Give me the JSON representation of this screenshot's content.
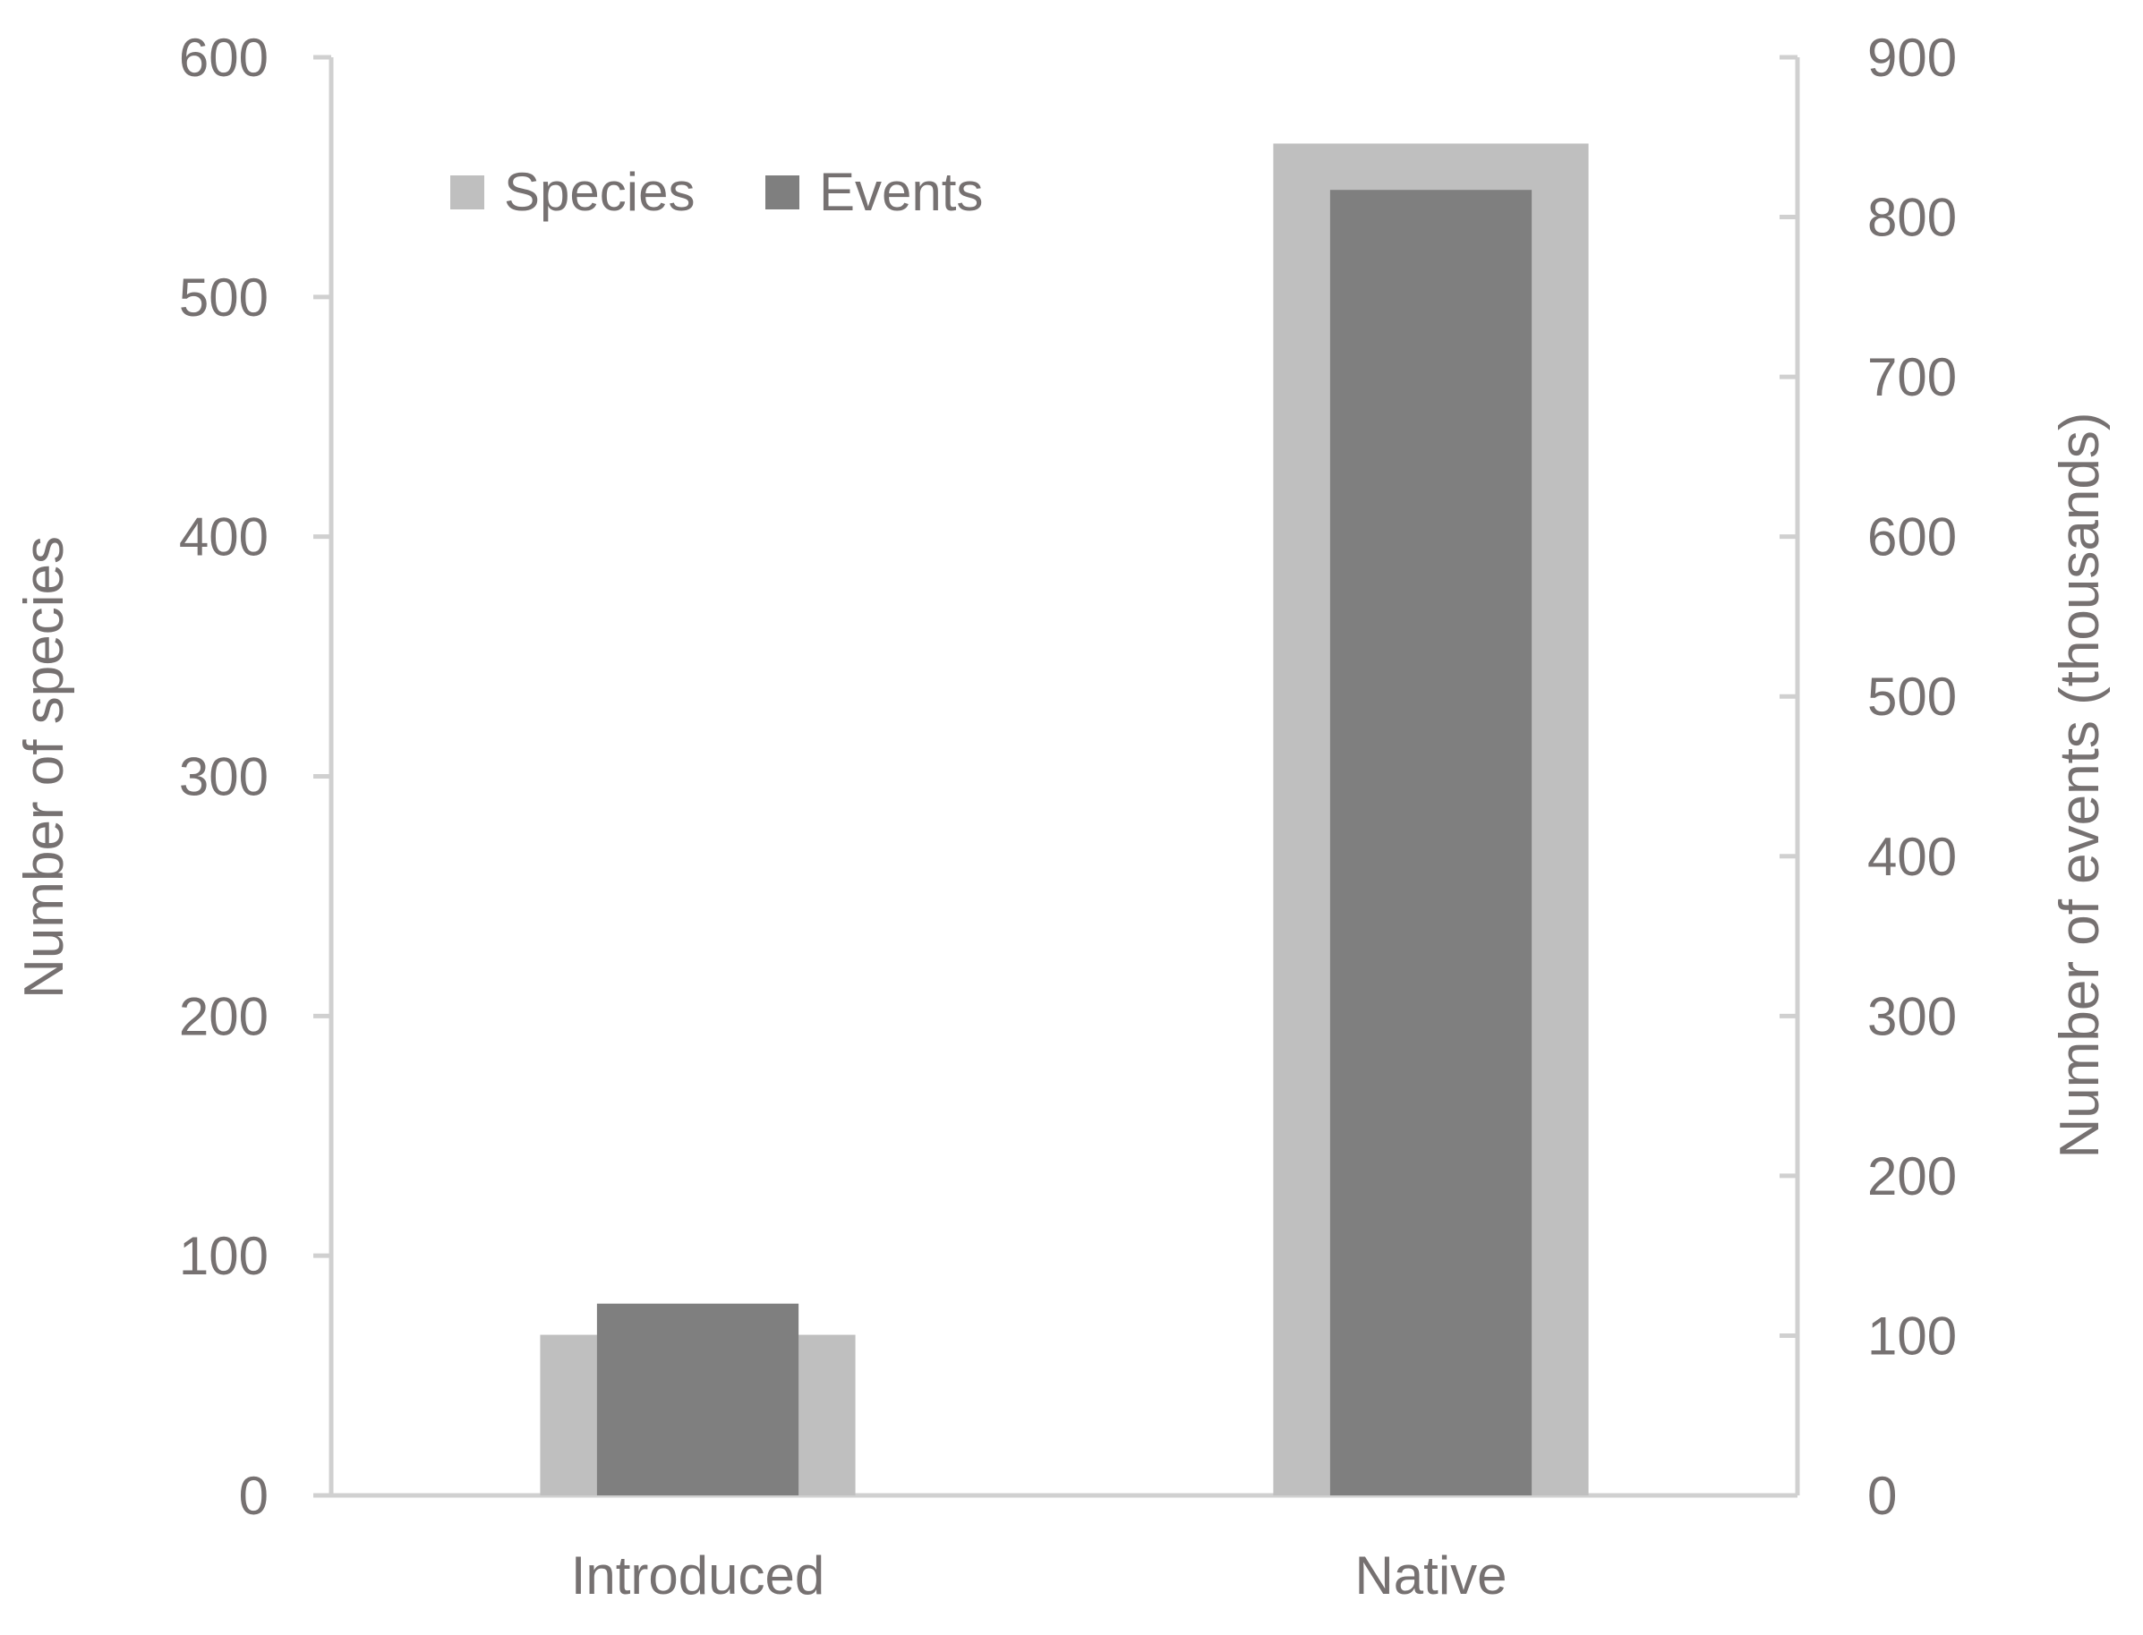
{
  "chart_data": {
    "type": "bar",
    "categories": [
      "Introduced",
      "Native"
    ],
    "series": [
      {
        "name": "Species",
        "axis": "left",
        "values": [
          67,
          564
        ],
        "color": "#bfbfbf"
      },
      {
        "name": "Events",
        "axis": "right",
        "values": [
          120,
          817
        ],
        "color": "#7f7f7f"
      }
    ],
    "ylabel": "Number of species",
    "ylabel_right": "Number of events (thousands)",
    "ylim": [
      0,
      600
    ],
    "ylim_right": [
      0,
      900
    ],
    "yticks": [
      "0",
      "100",
      "200",
      "300",
      "400",
      "500",
      "600"
    ],
    "yticks_right": [
      "0",
      "100",
      "200",
      "300",
      "400",
      "500",
      "600",
      "700",
      "800",
      "900"
    ],
    "legend_position": "top-left",
    "grid": false,
    "axis_color": "#d0d0d0",
    "text_color": "#767171"
  }
}
